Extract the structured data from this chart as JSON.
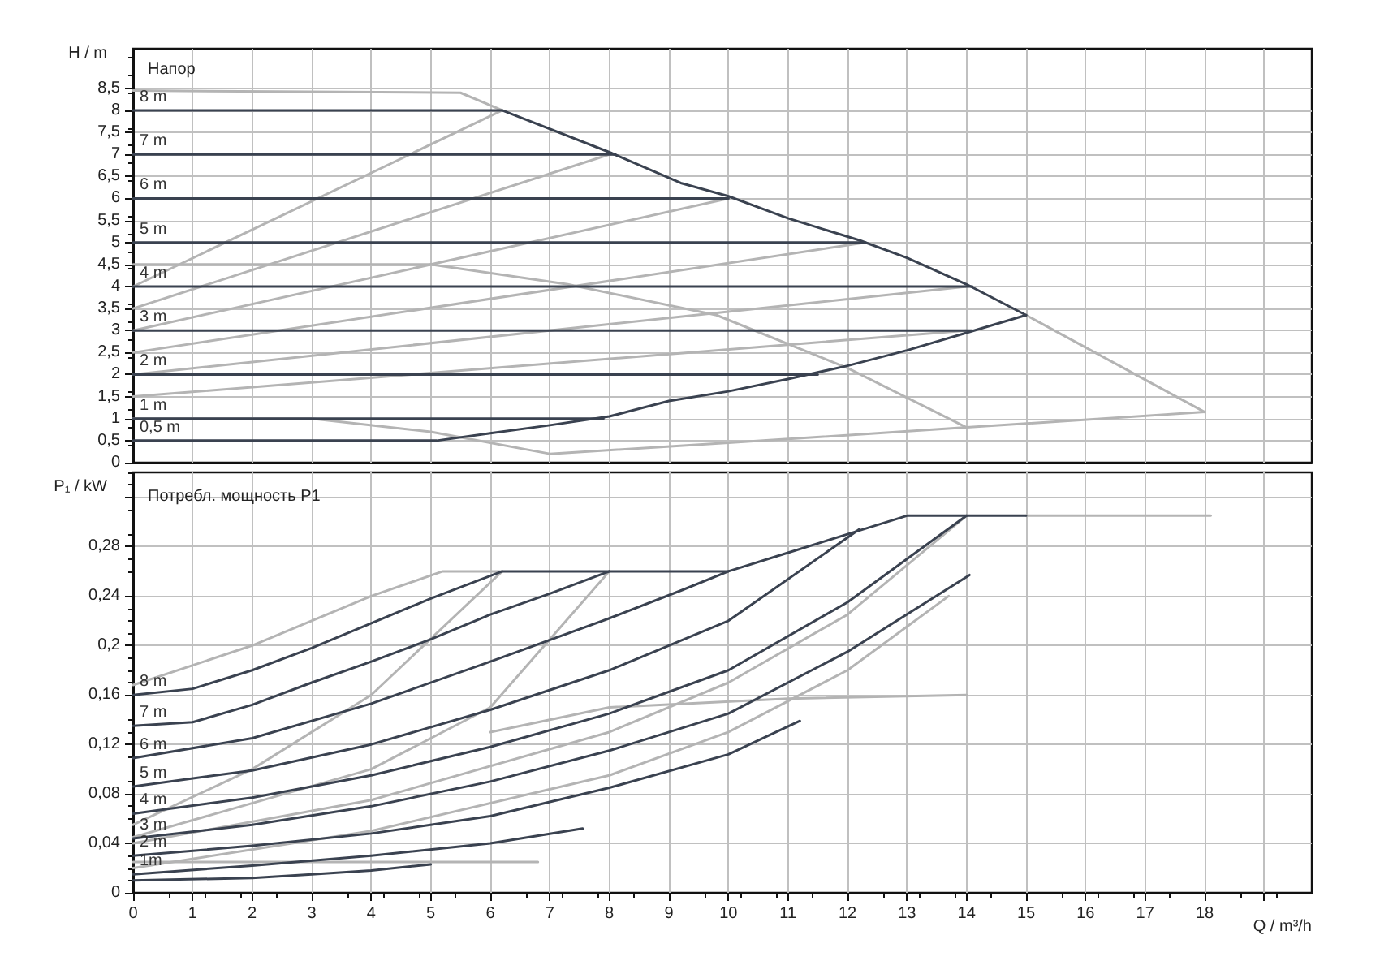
{
  "chart_data": [
    {
      "type": "line",
      "title": "Напор",
      "ylabel": "H / m",
      "tick_labels": "y",
      "grid": true,
      "legend": false,
      "marker": "none",
      "line_style": "solid",
      "xlim": [
        0,
        19.8
      ],
      "xticks": [
        0,
        1,
        2,
        3,
        4,
        5,
        6,
        7,
        8,
        9,
        10,
        11,
        12,
        13,
        14,
        15,
        16,
        17,
        18,
        {
          "value": 19,
          "label": null
        }
      ],
      "ylim": [
        0,
        9.4
      ],
      "yticks": [
        0,
        {
          "value": 0.5,
          "label": "0,5"
        },
        1,
        {
          "value": 1.5,
          "label": "1,5"
        },
        2,
        {
          "value": 2.5,
          "label": "2,5"
        },
        3,
        {
          "value": 3.5,
          "label": "3,5"
        },
        4,
        {
          "value": 4.5,
          "label": "4,5"
        },
        5,
        {
          "value": 5.5,
          "label": "5,5"
        },
        6,
        {
          "value": 6.5,
          "label": "6,5"
        },
        7,
        {
          "value": 7.5,
          "label": "7,5"
        },
        8,
        {
          "value": 8.5,
          "label": "8,5"
        }
      ],
      "series": [
        {
          "color": "#b4b4b4",
          "x": [
            0,
            6.2
          ],
          "values": [
            4,
            8
          ]
        },
        {
          "color": "#b4b4b4",
          "x": [
            0,
            8
          ],
          "values": [
            3.5,
            7
          ]
        },
        {
          "color": "#b4b4b4",
          "x": [
            0,
            10
          ],
          "values": [
            3,
            6
          ]
        },
        {
          "color": "#b4b4b4",
          "x": [
            0,
            12.3
          ],
          "values": [
            2.5,
            5
          ]
        },
        {
          "color": "#b4b4b4",
          "x": [
            0,
            14
          ],
          "values": [
            2,
            4
          ]
        },
        {
          "color": "#b4b4b4",
          "x": [
            0,
            14
          ],
          "values": [
            1.5,
            3
          ]
        },
        {
          "color": "#b4b4b4",
          "x": [
            0,
            3,
            5,
            7,
            10,
            14,
            18
          ],
          "values": [
            1,
            1,
            0.7,
            0.2,
            0.45,
            0.8,
            1.15
          ]
        },
        {
          "color": "#b4b4b4",
          "x": [
            15,
            18
          ],
          "values": [
            3.35,
            1.15
          ]
        },
        {
          "color": "#b4b4b4",
          "x": [
            0,
            5,
            7.3,
            9.8,
            12,
            14
          ],
          "values": [
            4.5,
            4.5,
            4.05,
            3.35,
            2.15,
            0.8
          ]
        },
        {
          "color": "#b4b4b4",
          "x": [
            0,
            5.5,
            6.2
          ],
          "values": [
            8.45,
            8.4,
            8
          ]
        },
        {
          "name": "8 m",
          "color": "#3a4250",
          "x": [
            0,
            6.2,
            8,
            9.2,
            10,
            11,
            12.2,
            13,
            14,
            15
          ],
          "values": [
            8,
            8,
            7.05,
            6.35,
            6.05,
            5.55,
            5.05,
            4.65,
            4.05,
            3.35
          ]
        },
        {
          "name": "7 m",
          "color": "#3a4250",
          "x": [
            0,
            8.1
          ],
          "values": [
            7,
            7
          ]
        },
        {
          "name": "6 m",
          "color": "#3a4250",
          "x": [
            0,
            10
          ],
          "values": [
            6,
            6
          ]
        },
        {
          "name": "5 m",
          "color": "#3a4250",
          "x": [
            0,
            12.3
          ],
          "values": [
            5,
            5
          ]
        },
        {
          "name": "4 m",
          "color": "#3a4250",
          "x": [
            0,
            14.1
          ],
          "values": [
            4,
            4
          ]
        },
        {
          "name": "3 m",
          "color": "#3a4250",
          "x": [
            0,
            14.1
          ],
          "values": [
            3,
            3
          ]
        },
        {
          "name": "2 m",
          "color": "#3a4250",
          "x": [
            0,
            11.5
          ],
          "values": [
            2,
            2
          ]
        },
        {
          "name": "1 m",
          "color": "#3a4250",
          "x": [
            0,
            7.9
          ],
          "values": [
            1,
            1
          ]
        },
        {
          "name": "0,5 m",
          "color": "#3a4250",
          "x": [
            0,
            5.1,
            6,
            7,
            8,
            9,
            10,
            11,
            12,
            13,
            14,
            15
          ],
          "values": [
            0.5,
            0.5,
            0.67,
            0.85,
            1.05,
            1.4,
            1.62,
            1.9,
            2.2,
            2.55,
            2.95,
            3.35
          ]
        }
      ]
    },
    {
      "type": "line",
      "title": "Потребл. мощность P1",
      "xlabel": "Q / m³/h",
      "ylabel": "P₁ / kW",
      "grid": true,
      "legend": false,
      "marker": "none",
      "line_style": "solid",
      "xlim": [
        0,
        19.8
      ],
      "xticks": [
        0,
        1,
        2,
        3,
        4,
        5,
        6,
        7,
        8,
        9,
        10,
        11,
        12,
        13,
        14,
        15,
        16,
        17,
        18,
        {
          "value": 19,
          "label": null
        }
      ],
      "ylim": [
        0,
        0.34
      ],
      "yticks": [
        0,
        {
          "value": 0.04,
          "label": "0,04"
        },
        {
          "value": 0.08,
          "label": "0,08"
        },
        {
          "value": 0.12,
          "label": "0,12"
        },
        {
          "value": 0.16,
          "label": "0,16"
        },
        {
          "value": 0.2,
          "label": "0,2"
        },
        {
          "value": 0.24,
          "label": "0,24"
        },
        {
          "value": 0.28,
          "label": "0,28"
        },
        {
          "value": 0.32,
          "label": null
        }
      ],
      "series": [
        {
          "color": "#b4b4b4",
          "x": [
            0,
            2,
            4,
            5.2,
            6.2
          ],
          "values": [
            0.168,
            0.2,
            0.24,
            0.26,
            0.26
          ]
        },
        {
          "color": "#b4b4b4",
          "x": [
            0,
            2,
            4,
            6.2
          ],
          "values": [
            0.055,
            0.1,
            0.16,
            0.26
          ]
        },
        {
          "color": "#b4b4b4",
          "x": [
            0,
            4,
            6,
            8
          ],
          "values": [
            0.045,
            0.1,
            0.15,
            0.26
          ]
        },
        {
          "color": "#b4b4b4",
          "x": [
            0,
            6.8
          ],
          "values": [
            0.025,
            0.025
          ]
        },
        {
          "color": "#b4b4b4",
          "x": [
            15,
            18.1
          ],
          "values": [
            0.305,
            0.305
          ]
        },
        {
          "color": "#b4b4b4",
          "x": [
            6,
            8,
            11,
            14
          ],
          "values": [
            0.13,
            0.15,
            0.157,
            0.16
          ]
        },
        {
          "color": "#b4b4b4",
          "x": [
            0,
            4,
            8,
            10,
            12,
            14
          ],
          "values": [
            0.04,
            0.075,
            0.13,
            0.17,
            0.225,
            0.305
          ]
        },
        {
          "color": "#b4b4b4",
          "x": [
            0,
            4,
            8,
            10,
            12,
            13.7
          ],
          "values": [
            0.02,
            0.05,
            0.095,
            0.13,
            0.18,
            0.24
          ]
        },
        {
          "name": "8 m",
          "color": "#3a4250",
          "x": [
            0,
            1,
            2,
            3,
            4,
            5,
            6.2,
            10,
            11,
            12,
            13,
            15
          ],
          "values": [
            0.16,
            0.165,
            0.18,
            0.198,
            0.218,
            0.238,
            0.26,
            0.26,
            0.275,
            0.29,
            0.305,
            0.305
          ]
        },
        {
          "name": "7 m",
          "color": "#3a4250",
          "x": [
            0,
            1,
            2,
            3,
            4,
            5,
            6,
            7,
            8
          ],
          "values": [
            0.135,
            0.138,
            0.152,
            0.17,
            0.187,
            0.205,
            0.225,
            0.242,
            0.26
          ]
        },
        {
          "name": "6 m",
          "color": "#3a4250",
          "x": [
            0,
            2,
            4,
            6,
            8,
            9.23,
            10
          ],
          "values": [
            0.109,
            0.125,
            0.153,
            0.187,
            0.222,
            0.245,
            0.26
          ]
        },
        {
          "name": "5 m",
          "color": "#3a4250",
          "x": [
            0,
            2,
            4,
            6,
            8,
            10,
            12.2
          ],
          "values": [
            0.086,
            0.099,
            0.12,
            0.148,
            0.18,
            0.22,
            0.294
          ]
        },
        {
          "name": "4 m",
          "color": "#3a4250",
          "x": [
            0,
            2,
            4,
            6,
            8,
            10,
            12,
            14
          ],
          "values": [
            0.064,
            0.077,
            0.095,
            0.118,
            0.145,
            0.18,
            0.235,
            0.305
          ]
        },
        {
          "name": "3 m",
          "color": "#3a4250",
          "x": [
            0,
            2,
            4,
            6,
            8,
            10,
            12,
            14.05
          ],
          "values": [
            0.044,
            0.055,
            0.07,
            0.09,
            0.115,
            0.145,
            0.195,
            0.257
          ]
        },
        {
          "name": "2 m",
          "color": "#3a4250",
          "x": [
            0,
            2,
            4,
            6,
            8,
            10,
            11.2
          ],
          "values": [
            0.03,
            0.038,
            0.048,
            0.062,
            0.085,
            0.112,
            0.139
          ]
        },
        {
          "name": "1m",
          "color": "#3a4250",
          "x": [
            0,
            2,
            4,
            6,
            7.55
          ],
          "values": [
            0.015,
            0.022,
            0.03,
            0.04,
            0.052
          ]
        },
        {
          "color": "#3a4250",
          "x": [
            0,
            2,
            3,
            4,
            5
          ],
          "values": [
            0.01,
            0.012,
            0.015,
            0.018,
            0.023
          ]
        }
      ]
    }
  ]
}
